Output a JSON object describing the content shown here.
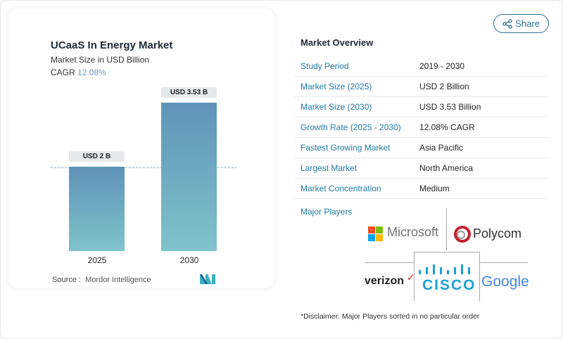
{
  "chart": {
    "title": "UCaaS In Energy Market",
    "subtitle": "Market Size in USD Billion",
    "cagr_label": "CAGR",
    "cagr_value": "12.08%",
    "source_label": "Source :",
    "source_value": "Mordor Intelligence"
  },
  "chart_data": {
    "type": "bar",
    "categories": [
      "2025",
      "2030"
    ],
    "values": [
      2,
      3.53
    ],
    "data_labels": [
      "USD 2 B",
      "USD 3.53 B"
    ],
    "title": "UCaaS In Energy Market",
    "ylabel": "Market Size in USD Billion",
    "colors": [
      "#5f93b8",
      "#7fc3cb"
    ]
  },
  "share": {
    "label": "Share",
    "icon": "share-icon"
  },
  "overview": {
    "title": "Market Overview",
    "rows": [
      {
        "k": "Study Period",
        "v": "2019 - 2030"
      },
      {
        "k": "Market Size (2025)",
        "v": "USD 2 Billion"
      },
      {
        "k": "Market Size (2030)",
        "v": "USD 3.53 Billion"
      },
      {
        "k": "Growth Rate (2025 - 2030)",
        "v": "12.08% CAGR"
      },
      {
        "k": "Fastest Growing Market",
        "v": "Asia Pacific"
      },
      {
        "k": "Largest Market",
        "v": "North America"
      },
      {
        "k": "Market Concentration",
        "v": "Medium"
      }
    ]
  },
  "players": {
    "title": "Major Players",
    "logos": [
      "Microsoft",
      "Polycom",
      "verizon",
      "cisco",
      "Google"
    ]
  },
  "disclaimer": "*Disclaimer: Major Players sorted in no particular order"
}
